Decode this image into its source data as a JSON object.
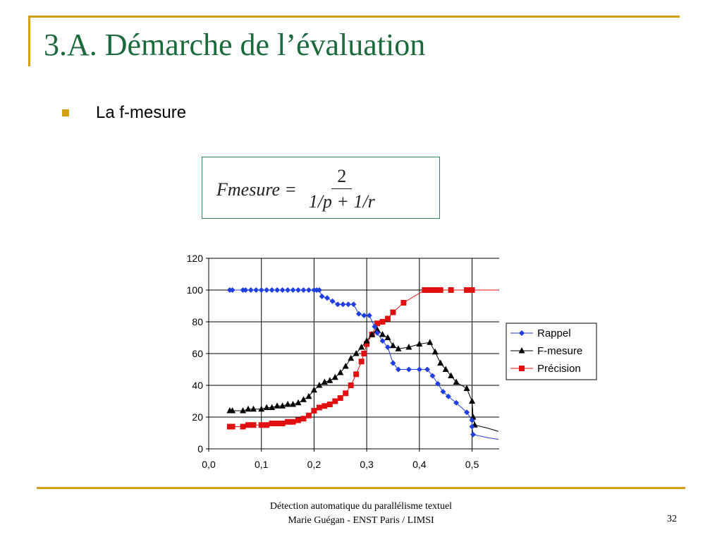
{
  "slide": {
    "title": "3.A. Démarche de l’évaluation",
    "bullet": "La f-mesure",
    "formula": {
      "lhs": "Fmesure",
      "eq": "=",
      "numerator": "2",
      "denominator": "1/p + 1/r"
    },
    "footer": {
      "line1": "Détection automatique du parallélisme textuel",
      "line2": "Marie Guégan - ENST Paris / LIMSI"
    },
    "page_number": "32",
    "colors": {
      "accent": "#d4a017",
      "title": "#1b6a3c",
      "formula_border": "#2e8b57"
    }
  },
  "chart_data": {
    "type": "line",
    "xlim": [
      0.0,
      0.55
    ],
    "ylim": [
      0,
      120
    ],
    "x_ticks": [
      "0,0",
      "0,1",
      "0,2",
      "0,3",
      "0,4",
      "0,5"
    ],
    "y_ticks": [
      "0",
      "20",
      "40",
      "60",
      "80",
      "100",
      "120"
    ],
    "grid": "vertical lines at 0.1 steps, horizontal lines at 20 steps",
    "legend": "right",
    "series": [
      {
        "name": "Rappel",
        "color": "#1f3fe0",
        "marker": "diamond",
        "points": [
          [
            0.04,
            100
          ],
          [
            0.045,
            100
          ],
          [
            0.065,
            100
          ],
          [
            0.07,
            100
          ],
          [
            0.08,
            100
          ],
          [
            0.09,
            100
          ],
          [
            0.1,
            100
          ],
          [
            0.11,
            100
          ],
          [
            0.12,
            100
          ],
          [
            0.13,
            100
          ],
          [
            0.14,
            100
          ],
          [
            0.15,
            100
          ],
          [
            0.16,
            100
          ],
          [
            0.17,
            100
          ],
          [
            0.18,
            100
          ],
          [
            0.19,
            100
          ],
          [
            0.2,
            100
          ],
          [
            0.205,
            100
          ],
          [
            0.21,
            100
          ],
          [
            0.215,
            96
          ],
          [
            0.225,
            95
          ],
          [
            0.235,
            93
          ],
          [
            0.245,
            91
          ],
          [
            0.255,
            91
          ],
          [
            0.265,
            91
          ],
          [
            0.275,
            91
          ],
          [
            0.285,
            85
          ],
          [
            0.295,
            84
          ],
          [
            0.305,
            84
          ],
          [
            0.315,
            77
          ],
          [
            0.32,
            73
          ],
          [
            0.33,
            68
          ],
          [
            0.34,
            64
          ],
          [
            0.35,
            54
          ],
          [
            0.36,
            50
          ],
          [
            0.38,
            50
          ],
          [
            0.4,
            50
          ],
          [
            0.415,
            50
          ],
          [
            0.425,
            46
          ],
          [
            0.435,
            41
          ],
          [
            0.445,
            36
          ],
          [
            0.455,
            33
          ],
          [
            0.47,
            29
          ],
          [
            0.49,
            23
          ],
          [
            0.5,
            18
          ],
          [
            0.5,
            14
          ],
          [
            0.502,
            9
          ]
        ],
        "tail": [
          [
            0.502,
            9
          ],
          [
            0.53,
            7
          ],
          [
            0.55,
            6
          ]
        ]
      },
      {
        "name": "F-mesure",
        "color": "#000000",
        "marker": "triangle",
        "points": [
          [
            0.04,
            24
          ],
          [
            0.045,
            24
          ],
          [
            0.065,
            24
          ],
          [
            0.075,
            25
          ],
          [
            0.085,
            25
          ],
          [
            0.1,
            25
          ],
          [
            0.11,
            26
          ],
          [
            0.12,
            26
          ],
          [
            0.13,
            27
          ],
          [
            0.14,
            27
          ],
          [
            0.15,
            28
          ],
          [
            0.16,
            28
          ],
          [
            0.17,
            29
          ],
          [
            0.18,
            31
          ],
          [
            0.19,
            33
          ],
          [
            0.2,
            37
          ],
          [
            0.21,
            40
          ],
          [
            0.22,
            42
          ],
          [
            0.23,
            43
          ],
          [
            0.24,
            45
          ],
          [
            0.25,
            48
          ],
          [
            0.26,
            52
          ],
          [
            0.27,
            57
          ],
          [
            0.28,
            60
          ],
          [
            0.29,
            64
          ],
          [
            0.3,
            68
          ],
          [
            0.31,
            72
          ],
          [
            0.32,
            75
          ],
          [
            0.33,
            72
          ],
          [
            0.34,
            70
          ],
          [
            0.35,
            65
          ],
          [
            0.36,
            63
          ],
          [
            0.38,
            64
          ],
          [
            0.4,
            66
          ],
          [
            0.42,
            67
          ],
          [
            0.43,
            61
          ],
          [
            0.44,
            54
          ],
          [
            0.45,
            50
          ],
          [
            0.46,
            46
          ],
          [
            0.47,
            42
          ],
          [
            0.49,
            38
          ],
          [
            0.5,
            30
          ],
          [
            0.502,
            20
          ],
          [
            0.505,
            15
          ]
        ],
        "tail": [
          [
            0.505,
            15
          ],
          [
            0.53,
            13
          ],
          [
            0.55,
            11
          ]
        ]
      },
      {
        "name": "Précision",
        "color": "#e01010",
        "marker": "square",
        "points": [
          [
            0.04,
            14
          ],
          [
            0.045,
            14
          ],
          [
            0.065,
            14
          ],
          [
            0.075,
            15
          ],
          [
            0.085,
            15
          ],
          [
            0.1,
            15
          ],
          [
            0.11,
            15
          ],
          [
            0.12,
            16
          ],
          [
            0.13,
            16
          ],
          [
            0.14,
            16
          ],
          [
            0.15,
            17
          ],
          [
            0.16,
            17
          ],
          [
            0.17,
            18
          ],
          [
            0.18,
            19
          ],
          [
            0.19,
            21
          ],
          [
            0.2,
            24
          ],
          [
            0.21,
            26
          ],
          [
            0.22,
            27
          ],
          [
            0.23,
            28
          ],
          [
            0.24,
            30
          ],
          [
            0.25,
            32
          ],
          [
            0.26,
            35
          ],
          [
            0.27,
            40
          ],
          [
            0.28,
            47
          ],
          [
            0.29,
            55
          ],
          [
            0.295,
            60
          ],
          [
            0.3,
            66
          ],
          [
            0.31,
            72
          ],
          [
            0.32,
            79
          ],
          [
            0.33,
            80
          ],
          [
            0.34,
            82
          ],
          [
            0.35,
            86
          ],
          [
            0.37,
            92
          ],
          [
            0.41,
            100
          ],
          [
            0.42,
            100
          ],
          [
            0.43,
            100
          ],
          [
            0.44,
            100
          ],
          [
            0.46,
            100
          ],
          [
            0.49,
            100
          ],
          [
            0.5,
            100
          ]
        ],
        "tail": [
          [
            0.5,
            100
          ],
          [
            0.53,
            100
          ],
          [
            0.55,
            100
          ]
        ]
      }
    ]
  }
}
